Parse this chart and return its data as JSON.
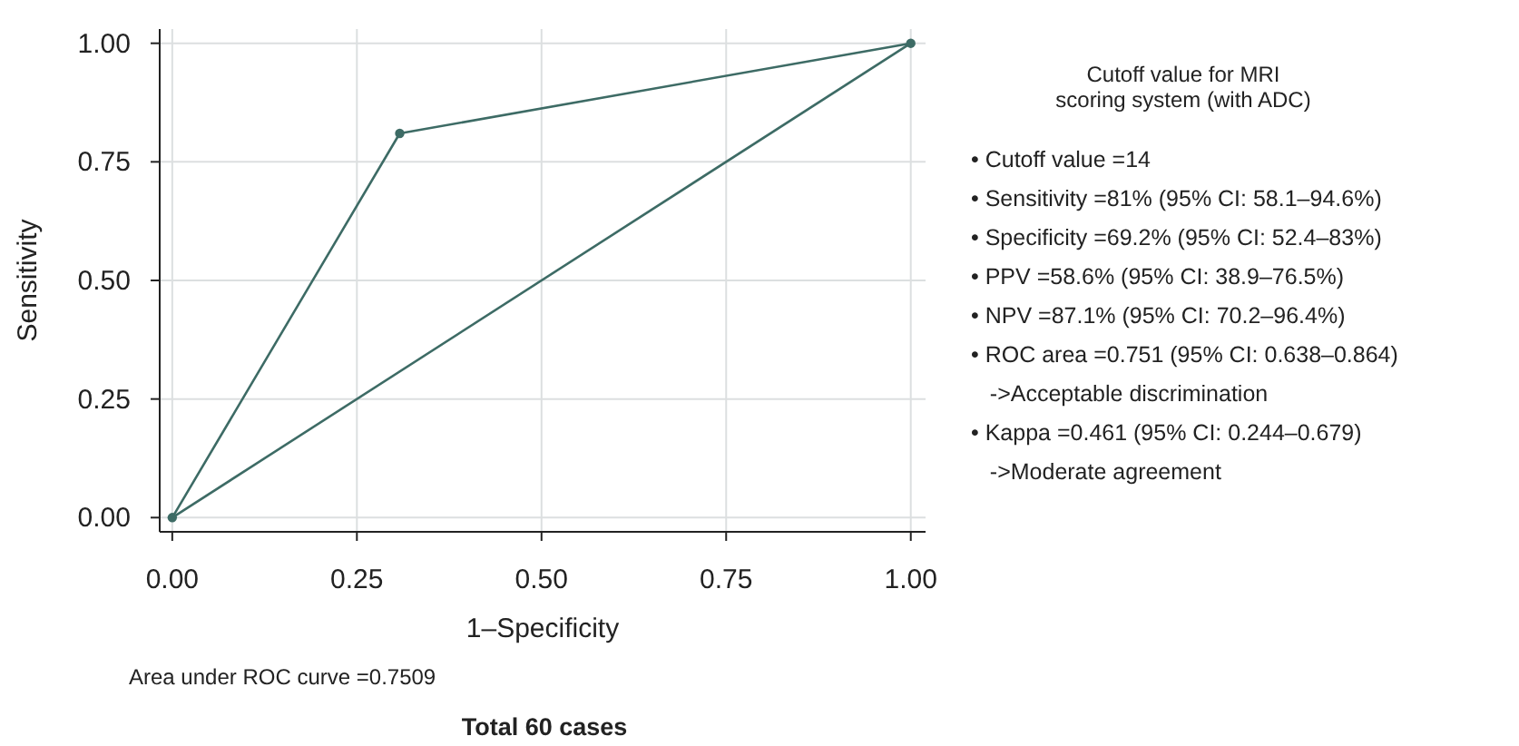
{
  "chart_data": {
    "type": "line",
    "title": "Total 60 cases",
    "xlabel": "1–Specificity",
    "ylabel": "Sensitivity",
    "xlim": [
      -0.017,
      1.02
    ],
    "ylim": [
      -0.03,
      1.03
    ],
    "xticks": [
      {
        "value": 0,
        "label": "0.00"
      },
      {
        "value": 0.25,
        "label": "0.25"
      },
      {
        "value": 0.5,
        "label": "0.50"
      },
      {
        "value": 0.75,
        "label": "0.75"
      },
      {
        "value": 1,
        "label": "1.00"
      }
    ],
    "yticks": [
      {
        "value": 0,
        "label": "0.00"
      },
      {
        "value": 0.25,
        "label": "0.25"
      },
      {
        "value": 0.5,
        "label": "0.50"
      },
      {
        "value": 0.75,
        "label": "0.75"
      },
      {
        "value": 1,
        "label": "1.00"
      }
    ],
    "grid": true,
    "series": [
      {
        "color": "#3d6b65",
        "x": [
          0,
          0.308,
          1
        ],
        "values": [
          0,
          0.81,
          1
        ],
        "marker": "circle",
        "line_style": "solid"
      },
      {
        "color": "#3d6b65",
        "x": [
          0,
          1
        ],
        "values": [
          0,
          1
        ],
        "marker": "none",
        "line_style": "solid"
      }
    ],
    "annotations": [
      "Cutoff value for MRI\nscoring system (with ADC)",
      "• Cutoff value =14",
      "• Sensitivity =81% (95% CI: 58.1–94.6%)",
      "• Specificity =69.2% (95% CI: 52.4–83%)",
      "• PPV =58.6% (95% CI: 38.9–76.5%)",
      "• NPV =87.1% (95% CI: 70.2–96.4%)",
      "• ROC area =0.751 (95% CI: 0.638–0.864)",
      "   ->Acceptable discrimination",
      "• Kappa =0.461 (95% CI: 0.244–0.679)",
      "   ->Moderate agreement",
      "Area under ROC curve =0.7509"
    ]
  }
}
